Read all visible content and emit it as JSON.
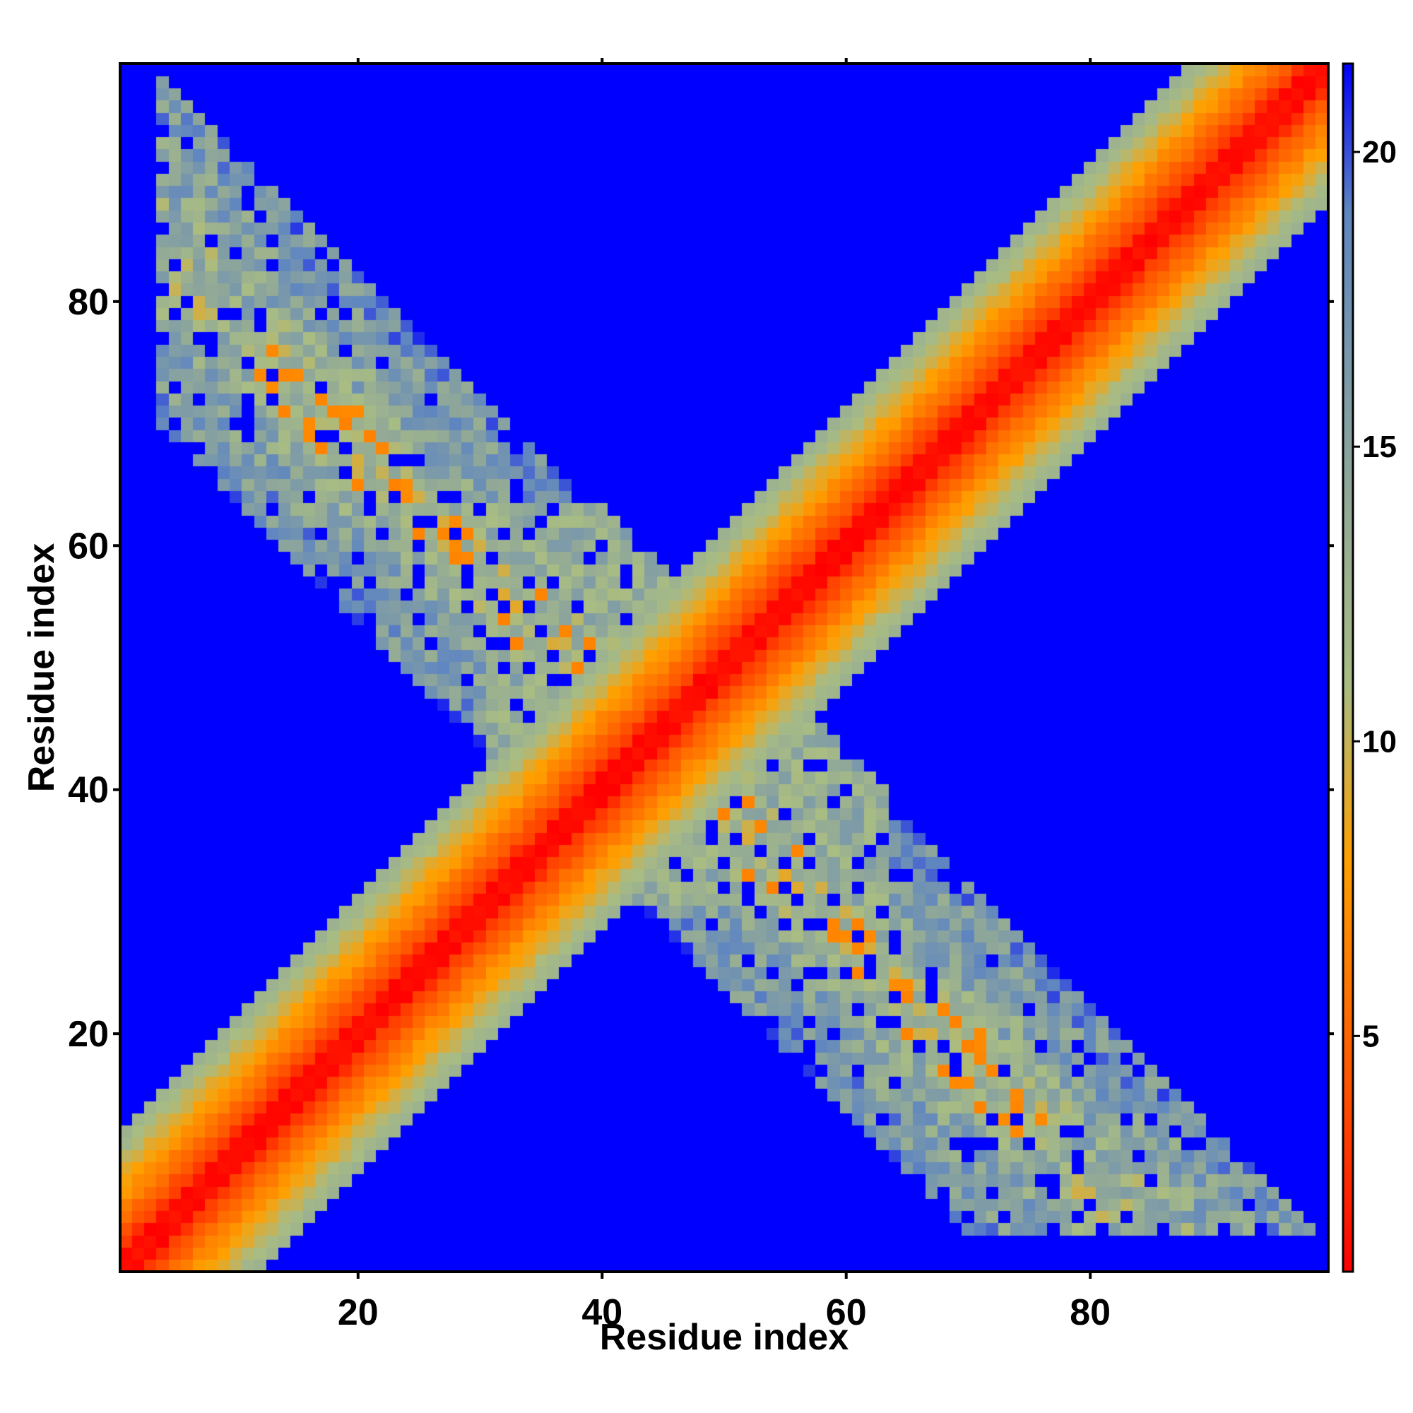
{
  "chart_data": {
    "type": "heatmap",
    "title": "",
    "xlabel": "Residue index",
    "ylabel": "Residue index",
    "xlim": [
      1,
      99
    ],
    "ylim": [
      1,
      99
    ],
    "grid": false,
    "x_ticks": [
      20,
      40,
      60,
      80
    ],
    "y_ticks": [
      20,
      40,
      60,
      80
    ],
    "x_tick_labels": [
      "20",
      "40",
      "60",
      "80"
    ],
    "y_tick_labels": [
      "20",
      "40",
      "60",
      "80"
    ],
    "matrix_size": 99,
    "value_description": "pairwise residue distance map, symmetric about the main diagonal",
    "features": [
      {
        "name": "main-diagonal-band",
        "from": [
          1,
          1
        ],
        "to": [
          99,
          99
        ],
        "core_value": 1,
        "halfwidth_residues": 10
      },
      {
        "name": "antiparallel-band",
        "from": [
          44,
          44
        ],
        "to": [
          10,
          90
        ],
        "contact_value": 12,
        "halfwidth_residues": 7
      },
      {
        "name": "antiparallel-band-extension",
        "from": [
          44,
          44
        ],
        "to": [
          60,
          60
        ],
        "contact_value": 13,
        "halfwidth_residues": 5
      }
    ],
    "colorbar": {
      "range": [
        1,
        21.5
      ],
      "ticks": [
        5,
        10,
        15,
        20
      ],
      "tick_labels": [
        "5",
        "10",
        "15",
        "20"
      ],
      "colors": [
        "#ff0000",
        "#ff5000",
        "#ffa000",
        "#a8bc84",
        "#93aa96",
        "#5f86c0",
        "#0000ff"
      ],
      "stops": [
        1,
        4,
        8,
        11,
        14,
        19,
        21.5
      ]
    }
  }
}
